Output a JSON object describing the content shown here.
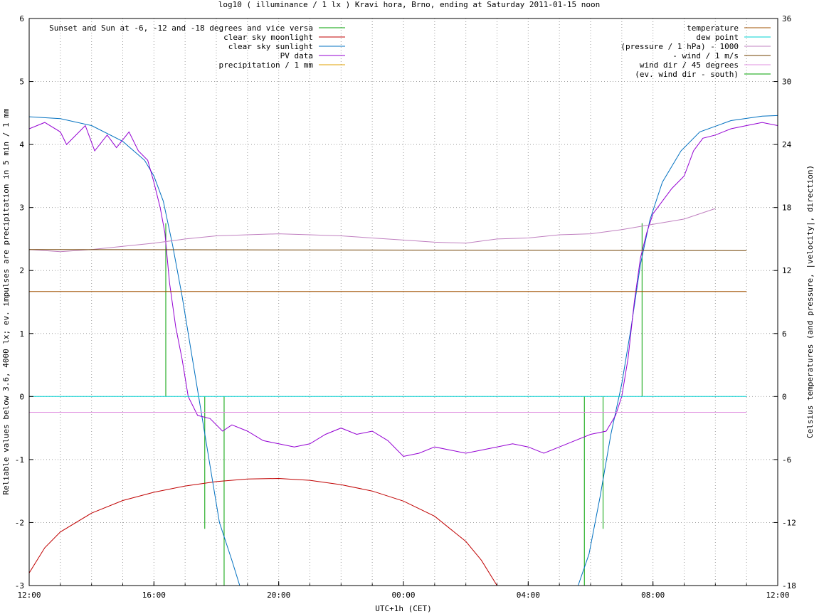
{
  "chart_data": {
    "type": "line",
    "title": "log10 ( illuminance / 1 lx ) Kravi hora, Brno, ending at Saturday 2011-01-15 noon",
    "xlabel": "UTC+1h (CET)",
    "ylabel": "Reliable values below 3.6, 4000 lx; ev. impulses are precipitation in 5 min / 1 mm",
    "y2label": "Celsius temperatures (and pressure, |velocity|, direction)",
    "x_hours_range": [
      0,
      24
    ],
    "ylim": [
      -3,
      6
    ],
    "y2lim": [
      -18,
      36
    ],
    "x_ticks": [
      {
        "h": 0,
        "label": "12:00"
      },
      {
        "h": 4,
        "label": "16:00"
      },
      {
        "h": 8,
        "label": "20:00"
      },
      {
        "h": 12,
        "label": "00:00"
      },
      {
        "h": 16,
        "label": "04:00"
      },
      {
        "h": 20,
        "label": "08:00"
      },
      {
        "h": 24,
        "label": "12:00"
      }
    ],
    "y_ticks": [
      "-3",
      "-2",
      "-1",
      "0",
      "1",
      "2",
      "3",
      "4",
      "5",
      "6"
    ],
    "y2_ticks": [
      "-18",
      "-12",
      "-6",
      "0",
      "6",
      "12",
      "18",
      "24",
      "30",
      "36"
    ],
    "grid": true,
    "legend_left": [
      {
        "label": "Sunset and Sun at -6, -12 and -18 degrees and vice versa",
        "color": "#00a000"
      },
      {
        "label": "clear sky moonlight",
        "color": "#c00000"
      },
      {
        "label": "clear sky sunlight",
        "color": "#0070c0"
      },
      {
        "label": "PV data",
        "color": "#9400d3"
      },
      {
        "label": "precipitation / 1 mm",
        "color": "#e0a000"
      }
    ],
    "legend_right": [
      {
        "label": "temperature",
        "color": "#a05000"
      },
      {
        "label": "dew point",
        "color": "#00d0d0"
      },
      {
        "label": "(pressure / 1 hPa) - 1000",
        "color": "#c080c0"
      },
      {
        "label": "- wind / 1 m/s",
        "color": "#704000"
      },
      {
        "label": "wind dir / 45 degrees",
        "color": "#e090e0"
      },
      {
        "label": "(ev. wind dir - south)",
        "color": "#00a000"
      }
    ],
    "series": [
      {
        "name": "Sunset and Sun at -6, -12 and -18 degrees and vice versa",
        "type": "impulse",
        "axis": "y",
        "points": [
          [
            4.38,
            2.75
          ],
          [
            5.63,
            -2.1
          ],
          [
            6.25,
            -3.0
          ],
          [
            17.8,
            -3.0
          ],
          [
            18.4,
            -2.1
          ],
          [
            19.65,
            2.75
          ]
        ]
      },
      {
        "name": "clear sky moonlight",
        "axis": "y",
        "points": [
          [
            0.0,
            -2.8
          ],
          [
            0.5,
            -2.4
          ],
          [
            1.0,
            -2.15
          ],
          [
            2.0,
            -1.85
          ],
          [
            3.0,
            -1.65
          ],
          [
            4.0,
            -1.52
          ],
          [
            5.0,
            -1.42
          ],
          [
            6.0,
            -1.35
          ],
          [
            7.0,
            -1.31
          ],
          [
            8.0,
            -1.3
          ],
          [
            9.0,
            -1.33
          ],
          [
            10.0,
            -1.4
          ],
          [
            11.0,
            -1.5
          ],
          [
            12.0,
            -1.66
          ],
          [
            13.0,
            -1.9
          ],
          [
            14.0,
            -2.3
          ],
          [
            14.5,
            -2.6
          ],
          [
            15.0,
            -3.0
          ]
        ]
      },
      {
        "name": "clear sky sunlight",
        "axis": "y",
        "points": [
          [
            0.0,
            4.44
          ],
          [
            1.0,
            4.41
          ],
          [
            2.0,
            4.3
          ],
          [
            3.0,
            4.05
          ],
          [
            3.7,
            3.75
          ],
          [
            4.0,
            3.5
          ],
          [
            4.3,
            3.1
          ],
          [
            4.6,
            2.4
          ],
          [
            4.9,
            1.6
          ],
          [
            5.2,
            0.7
          ],
          [
            5.5,
            -0.2
          ],
          [
            5.8,
            -1.1
          ],
          [
            6.1,
            -2.0
          ],
          [
            6.5,
            -2.6
          ],
          [
            6.75,
            -3.0
          ]
        ]
      },
      {
        "name": "clear sky sunlight",
        "axis": "y",
        "points": [
          [
            17.6,
            -3.0
          ],
          [
            17.95,
            -2.5
          ],
          [
            18.3,
            -1.6
          ],
          [
            18.65,
            -0.6
          ],
          [
            19.0,
            0.2
          ],
          [
            19.3,
            1.1
          ],
          [
            19.6,
            2.1
          ],
          [
            19.9,
            2.8
          ],
          [
            20.3,
            3.4
          ],
          [
            20.9,
            3.9
          ],
          [
            21.5,
            4.2
          ],
          [
            22.5,
            4.38
          ],
          [
            23.5,
            4.45
          ],
          [
            24.0,
            4.46
          ]
        ]
      },
      {
        "name": "PV data",
        "axis": "y",
        "points": [
          [
            0.0,
            4.25
          ],
          [
            0.5,
            4.35
          ],
          [
            1.0,
            4.2
          ],
          [
            1.2,
            4.0
          ],
          [
            1.8,
            4.3
          ],
          [
            2.1,
            3.9
          ],
          [
            2.5,
            4.15
          ],
          [
            2.8,
            3.95
          ],
          [
            3.2,
            4.2
          ],
          [
            3.5,
            3.9
          ],
          [
            3.8,
            3.75
          ],
          [
            4.0,
            3.4
          ],
          [
            4.2,
            3.0
          ],
          [
            4.35,
            2.6
          ],
          [
            4.5,
            1.8
          ],
          [
            4.7,
            1.1
          ],
          [
            4.9,
            0.6
          ],
          [
            5.1,
            0.0
          ],
          [
            5.4,
            -0.3
          ],
          [
            5.8,
            -0.35
          ],
          [
            6.2,
            -0.55
          ],
          [
            6.5,
            -0.45
          ],
          [
            7.0,
            -0.55
          ],
          [
            7.5,
            -0.7
          ],
          [
            8.0,
            -0.75
          ],
          [
            8.5,
            -0.8
          ],
          [
            9.0,
            -0.75
          ],
          [
            9.5,
            -0.6
          ],
          [
            10.0,
            -0.5
          ],
          [
            10.5,
            -0.6
          ],
          [
            11.0,
            -0.55
          ],
          [
            11.5,
            -0.7
          ],
          [
            12.0,
            -0.95
          ],
          [
            12.5,
            -0.9
          ],
          [
            13.0,
            -0.8
          ],
          [
            13.5,
            -0.85
          ],
          [
            14.0,
            -0.9
          ],
          [
            14.5,
            -0.85
          ],
          [
            15.0,
            -0.8
          ],
          [
            15.5,
            -0.75
          ],
          [
            16.0,
            -0.8
          ],
          [
            16.5,
            -0.9
          ],
          [
            17.0,
            -0.8
          ],
          [
            17.5,
            -0.7
          ],
          [
            18.0,
            -0.6
          ],
          [
            18.5,
            -0.55
          ],
          [
            18.8,
            -0.3
          ],
          [
            19.0,
            0.0
          ],
          [
            19.2,
            0.6
          ],
          [
            19.4,
            1.5
          ],
          [
            19.6,
            2.2
          ],
          [
            19.8,
            2.6
          ],
          [
            20.0,
            2.9
          ],
          [
            20.3,
            3.1
          ],
          [
            20.6,
            3.3
          ],
          [
            21.0,
            3.5
          ],
          [
            21.3,
            3.9
          ],
          [
            21.6,
            4.1
          ],
          [
            22.0,
            4.15
          ],
          [
            22.5,
            4.25
          ],
          [
            23.0,
            4.3
          ],
          [
            23.5,
            4.35
          ],
          [
            24.0,
            4.3
          ]
        ]
      },
      {
        "name": "temperature",
        "axis": "y2",
        "points": [
          [
            0.0,
            10.0
          ],
          [
            23.0,
            10.0
          ]
        ]
      },
      {
        "name": "dew point",
        "axis": "y2",
        "points": [
          [
            0.0,
            0.0
          ],
          [
            23.0,
            0.0
          ]
        ]
      },
      {
        "name": "(pressure / 1 hPa) - 1000",
        "axis": "y2",
        "points": [
          [
            0.0,
            14.0
          ],
          [
            1.0,
            13.8
          ],
          [
            2.0,
            14.0
          ],
          [
            3.0,
            14.3
          ],
          [
            4.0,
            14.6
          ],
          [
            5.0,
            15.0
          ],
          [
            6.0,
            15.3
          ],
          [
            7.0,
            15.4
          ],
          [
            8.0,
            15.5
          ],
          [
            9.0,
            15.4
          ],
          [
            10.0,
            15.3
          ],
          [
            11.0,
            15.1
          ],
          [
            12.0,
            14.9
          ],
          [
            13.0,
            14.7
          ],
          [
            14.0,
            14.6
          ],
          [
            15.0,
            15.0
          ],
          [
            16.0,
            15.1
          ],
          [
            17.0,
            15.4
          ],
          [
            18.0,
            15.5
          ],
          [
            19.0,
            15.9
          ],
          [
            20.0,
            16.4
          ],
          [
            21.0,
            16.9
          ],
          [
            22.0,
            17.9
          ]
        ]
      },
      {
        "name": "- wind / 1 m/s",
        "axis": "y2",
        "points": [
          [
            0.0,
            14.0
          ],
          [
            23.0,
            13.9
          ]
        ]
      },
      {
        "name": "wind dir / 45 degrees",
        "axis": "y2",
        "points": [
          [
            0.0,
            -1.5
          ],
          [
            23.0,
            -1.5
          ]
        ]
      }
    ]
  }
}
